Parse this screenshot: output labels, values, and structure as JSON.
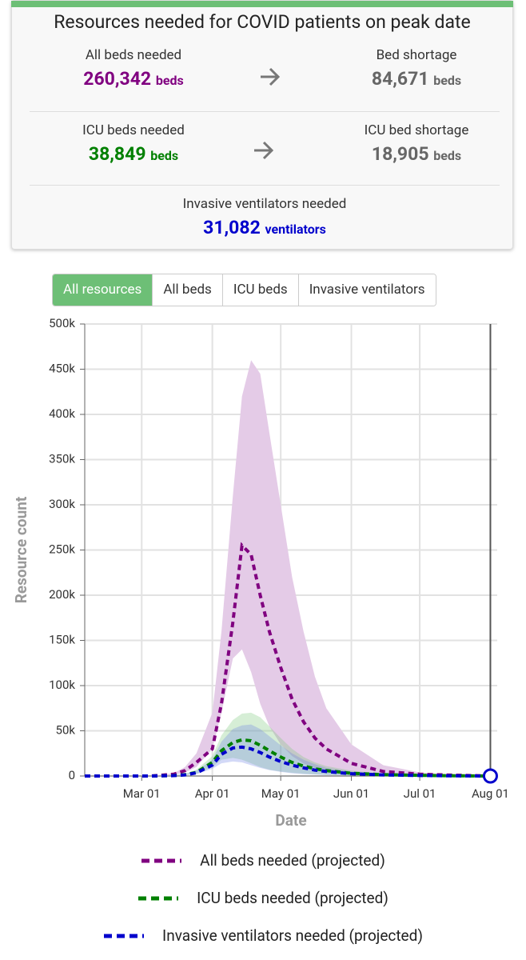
{
  "summary": {
    "title": "Resources needed for COVID patients on peak date",
    "rows": [
      [
        {
          "label": "All beds needed",
          "value": "260,342",
          "unit": "beds"
        },
        {
          "label": "Bed shortage",
          "value": "84,671",
          "unit": "beds"
        }
      ],
      [
        {
          "label": "ICU beds needed",
          "value": "38,849",
          "unit": "beds"
        },
        {
          "label": "ICU bed shortage",
          "value": "18,905",
          "unit": "beds"
        }
      ],
      [
        {
          "label": "Invasive ventilators needed",
          "value": "31,082",
          "unit": "ventilators"
        }
      ]
    ]
  },
  "tabs": {
    "items": [
      "All resources",
      "All beds",
      "ICU beds",
      "Invasive ventilators"
    ],
    "active": 0
  },
  "chart_data": {
    "type": "line",
    "x_label": "Date",
    "y_label": "Resource count",
    "x": [
      "Feb 05",
      "Feb 15",
      "Feb 25",
      "Mar 05",
      "Mar 15",
      "Mar 20",
      "Mar 25",
      "Apr 01",
      "Apr 05",
      "Apr 10",
      "Apr 14",
      "Apr 18",
      "Apr 22",
      "Apr 26",
      "May 01",
      "May 06",
      "May 11",
      "May 16",
      "May 21",
      "Jun 01",
      "Jun 15",
      "Jul 01",
      "Jul 15",
      "Aug 01"
    ],
    "xlim": [
      "Feb 05",
      "Aug 04"
    ],
    "xticks": [
      "Mar 01",
      "Apr 01",
      "May 01",
      "Jun 01",
      "Jul 01",
      "Aug 01"
    ],
    "ylim": [
      0,
      500000
    ],
    "yticks": [
      0,
      {
        "value": 50000,
        "label": "50k"
      },
      {
        "value": 100000,
        "label": "100k"
      },
      {
        "value": 150000,
        "label": "150k"
      },
      {
        "value": 200000,
        "label": "200k"
      },
      {
        "value": 250000,
        "label": "250k"
      },
      {
        "value": 300000,
        "label": "300k"
      },
      {
        "value": 350000,
        "label": "350k"
      },
      {
        "value": 400000,
        "label": "400k"
      },
      {
        "value": 450000,
        "label": "450k"
      },
      {
        "value": 500000,
        "label": "500k"
      }
    ],
    "grid": true,
    "series": [
      {
        "name": "All beds needed (projected)",
        "color": "#800080",
        "band_color": "#e4cbe7",
        "values": [
          0,
          0,
          0,
          0,
          2000,
          6000,
          15000,
          30000,
          80000,
          170000,
          255000,
          245000,
          200000,
          160000,
          120000,
          85000,
          60000,
          42000,
          30000,
          14000,
          5000,
          2000,
          1000,
          0
        ],
        "upper": [
          0,
          0,
          0,
          0,
          3000,
          10000,
          25000,
          70000,
          160000,
          310000,
          420000,
          460000,
          445000,
          380000,
          300000,
          220000,
          160000,
          110000,
          75000,
          35000,
          12000,
          4000,
          1500,
          0
        ],
        "lower": [
          0,
          0,
          0,
          0,
          1000,
          4000,
          10000,
          30000,
          70000,
          130000,
          140000,
          115000,
          80000,
          55000,
          35000,
          22000,
          14000,
          9000,
          6000,
          3000,
          1000,
          500,
          0,
          0
        ]
      },
      {
        "name": "ICU beds needed (projected)",
        "color": "#008000",
        "band_color": "rgba(120,200,120,0.3)",
        "values": [
          0,
          0,
          0,
          0,
          500,
          1500,
          4000,
          15000,
          28000,
          37000,
          40000,
          39000,
          34000,
          28000,
          21000,
          15000,
          11000,
          8000,
          6000,
          3000,
          1500,
          700,
          300,
          0
        ],
        "upper": [
          0,
          0,
          0,
          0,
          800,
          2500,
          7000,
          22000,
          45000,
          62000,
          69000,
          70000,
          65000,
          55000,
          42000,
          30000,
          21000,
          15000,
          11000,
          6000,
          2500,
          1200,
          500,
          0
        ],
        "lower": [
          0,
          0,
          0,
          0,
          300,
          1000,
          2500,
          10000,
          18000,
          20000,
          18000,
          14000,
          10000,
          7000,
          5000,
          3500,
          2500,
          1800,
          1200,
          700,
          300,
          100,
          0,
          0
        ]
      },
      {
        "name": "Invasive ventilators needed (projected)",
        "color": "#0000cc",
        "band_color": "rgba(110,130,230,0.3)",
        "values": [
          0,
          0,
          0,
          0,
          400,
          1200,
          3500,
          12000,
          24000,
          31000,
          32000,
          30000,
          26000,
          21000,
          16000,
          12000,
          9000,
          6500,
          5000,
          2500,
          1200,
          600,
          200,
          0
        ],
        "upper": [
          0,
          0,
          0,
          0,
          700,
          2000,
          6000,
          18000,
          38000,
          52000,
          56000,
          57000,
          52000,
          44000,
          34000,
          25000,
          18000,
          13000,
          9000,
          5000,
          2000,
          1000,
          400,
          0
        ],
        "lower": [
          0,
          0,
          0,
          0,
          200,
          800,
          2000,
          8000,
          14000,
          16000,
          15000,
          12000,
          9000,
          6500,
          4500,
          3000,
          2000,
          1500,
          1000,
          600,
          250,
          80,
          0,
          0
        ]
      }
    ]
  }
}
